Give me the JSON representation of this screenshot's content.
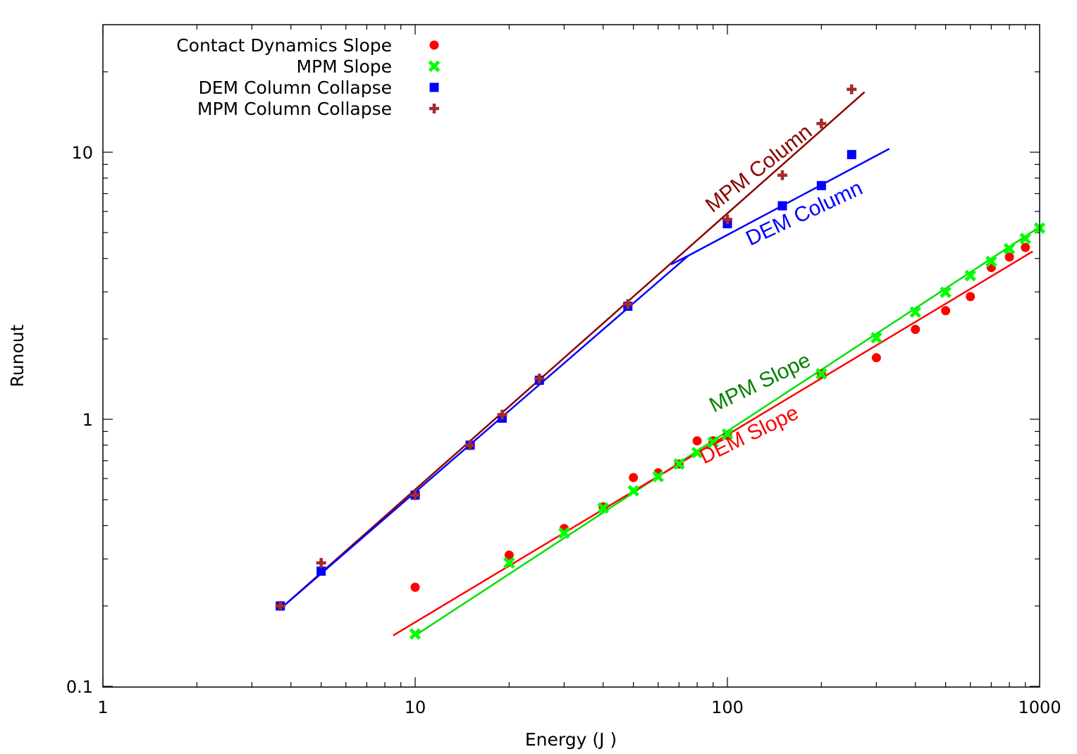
{
  "chart_data": {
    "type": "scatter",
    "xlabel": "Energy (J )",
    "ylabel": "Runout",
    "xscale": "log",
    "yscale": "log",
    "xlim": [
      1,
      1000
    ],
    "ylim": [
      0.1,
      28
    ],
    "x_ticks": [
      {
        "value": 1,
        "label": "1"
      },
      {
        "value": 10,
        "label": "10"
      },
      {
        "value": 100,
        "label": "100"
      },
      {
        "value": 1000,
        "label": "1000"
      }
    ],
    "y_ticks": [
      {
        "value": 0.1,
        "label": "0.1"
      },
      {
        "value": 1,
        "label": "1"
      },
      {
        "value": 10,
        "label": "10"
      }
    ],
    "grid": false,
    "legend_position": "top-left",
    "series": [
      {
        "name": "Contact Dynamics Slope",
        "marker": "circle",
        "color": "#ff0000",
        "points": [
          [
            10,
            0.235
          ],
          [
            20,
            0.31
          ],
          [
            30,
            0.39
          ],
          [
            40,
            0.47
          ],
          [
            50,
            0.605
          ],
          [
            60,
            0.63
          ],
          [
            70,
            0.68
          ],
          [
            80,
            0.83
          ],
          [
            90,
            0.83
          ],
          [
            100,
            0.87
          ],
          [
            200,
            1.48
          ],
          [
            300,
            1.7
          ],
          [
            400,
            2.17
          ],
          [
            500,
            2.55
          ],
          [
            600,
            2.88
          ],
          [
            700,
            3.7
          ],
          [
            800,
            4.05
          ],
          [
            900,
            4.4
          ]
        ]
      },
      {
        "name": "MPM Slope",
        "marker": "cross",
        "color": "#00ff00",
        "points": [
          [
            10,
            0.157
          ],
          [
            20,
            0.29
          ],
          [
            30,
            0.375
          ],
          [
            40,
            0.465
          ],
          [
            50,
            0.54
          ],
          [
            60,
            0.61
          ],
          [
            70,
            0.68
          ],
          [
            80,
            0.75
          ],
          [
            90,
            0.82
          ],
          [
            100,
            0.88
          ],
          [
            200,
            1.48
          ],
          [
            300,
            2.02
          ],
          [
            400,
            2.52
          ],
          [
            500,
            2.99
          ],
          [
            600,
            3.45
          ],
          [
            700,
            3.9
          ],
          [
            800,
            4.35
          ],
          [
            900,
            4.75
          ],
          [
            1000,
            5.2
          ]
        ]
      },
      {
        "name": "DEM Column Collapse",
        "marker": "square",
        "color": "#0000ff",
        "points": [
          [
            3.7,
            0.2
          ],
          [
            5,
            0.27
          ],
          [
            10,
            0.52
          ],
          [
            15,
            0.8
          ],
          [
            19,
            1.01
          ],
          [
            25,
            1.4
          ],
          [
            48,
            2.65
          ],
          [
            100,
            5.4
          ],
          [
            150,
            6.3
          ],
          [
            200,
            7.5
          ],
          [
            250,
            9.8
          ]
        ]
      },
      {
        "name": "MPM Column Collapse",
        "marker": "plus",
        "color": "#a52a2a",
        "points": [
          [
            3.7,
            0.2
          ],
          [
            5,
            0.29
          ],
          [
            10,
            0.52
          ],
          [
            15,
            0.8
          ],
          [
            19,
            1.04
          ],
          [
            25,
            1.42
          ],
          [
            48,
            2.7
          ],
          [
            100,
            5.6
          ],
          [
            150,
            8.2
          ],
          [
            200,
            12.8
          ],
          [
            250,
            17.2
          ]
        ]
      }
    ],
    "fit_lines": [
      {
        "label": "MPM Column",
        "color": "#8b0000",
        "segments": [
          [
            [
              3.7,
              0.195
            ],
            [
              275,
              16.8
            ]
          ]
        ]
      },
      {
        "label": "DEM Column",
        "color": "#0000ff",
        "segments": [
          [
            [
              3.7,
              0.195
            ],
            [
              75,
              4.1
            ]
          ],
          [
            [
              66,
              3.8
            ],
            [
              75,
              4.1
            ]
          ],
          [
            [
              75,
              4.1
            ],
            [
              330,
              10.3
            ]
          ]
        ]
      },
      {
        "label": "MPM Slope",
        "color": "#00e000",
        "segments": [
          [
            [
              10,
              0.155
            ],
            [
              1000,
              5.25
            ]
          ]
        ]
      },
      {
        "label": "DEM Slope",
        "color": "#ff0000",
        "segments": [
          [
            [
              8.5,
              0.155
            ],
            [
              950,
              4.25
            ]
          ]
        ]
      }
    ],
    "annotations": [
      {
        "text": "MPM Column",
        "color": "#8b0000",
        "at": [
          130,
          8.3
        ],
        "angle": -38
      },
      {
        "text": "DEM Column",
        "color": "#0000ff",
        "at": [
          180,
          5.6
        ],
        "angle": -25
      },
      {
        "text": "MPM Slope",
        "color": "#008000",
        "at": [
          130,
          1.3
        ],
        "angle": -26
      },
      {
        "text": "DEM Slope",
        "color": "#ff0000",
        "at": [
          120,
          0.83
        ],
        "angle": -26
      }
    ]
  }
}
